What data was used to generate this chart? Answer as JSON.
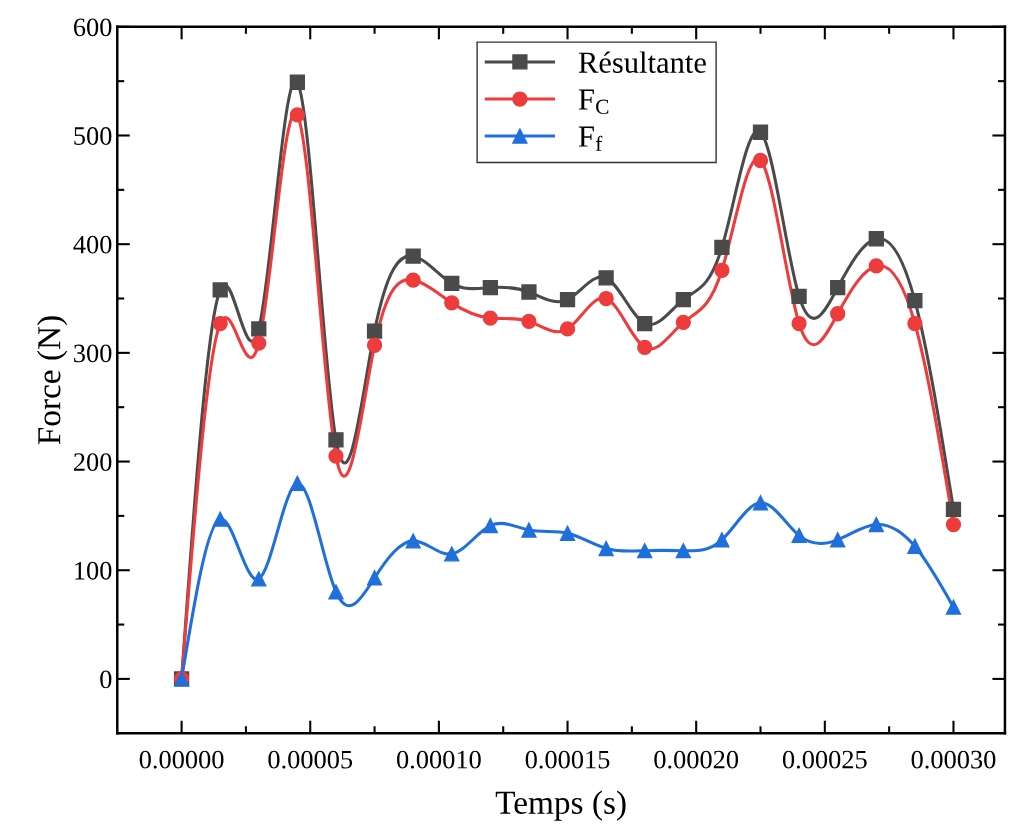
{
  "chart_data": {
    "type": "line",
    "xlabel": "Temps (s)",
    "ylabel": "Force (N)",
    "x": [
      0,
      1.5e-05,
      3e-05,
      4.5e-05,
      6e-05,
      7.5e-05,
      9e-05,
      0.000105,
      0.00012,
      0.000135,
      0.00015,
      0.000165,
      0.00018,
      0.000195,
      0.00021,
      0.000225,
      0.00024,
      0.000255,
      0.00027,
      0.000285,
      0.0003
    ],
    "series": [
      {
        "name": "Résultante",
        "color": "#4a4a4a",
        "marker": "square",
        "values": [
          0,
          358,
          322,
          549,
          220,
          320,
          389,
          364,
          360,
          356,
          349,
          369,
          327,
          349,
          397,
          503,
          352,
          360,
          405,
          348,
          156
        ]
      },
      {
        "name": "F$_{C}$",
        "color": "#ee3b3b",
        "marker": "circle",
        "values": [
          0,
          327,
          309,
          519,
          205,
          307,
          367,
          346,
          332,
          329,
          322,
          350,
          305,
          328,
          376,
          477,
          327,
          336,
          380,
          327,
          142
        ]
      },
      {
        "name": "F$_{f}$",
        "color": "#1f6fdc",
        "marker": "triangle",
        "values": [
          0,
          147,
          92,
          180,
          80,
          93,
          127,
          115,
          141,
          137,
          134,
          120,
          118,
          118,
          128,
          162,
          132,
          128,
          142,
          122,
          66
        ]
      }
    ],
    "xlim": [
      -2.5e-05,
      0.00032
    ],
    "xticks": [
      {
        "value": 0,
        "label": "0.00000"
      },
      {
        "value": 2.5e-05,
        "label": null
      },
      {
        "value": 5e-05,
        "label": "0.00005"
      },
      {
        "value": 7.5e-05,
        "label": null
      },
      {
        "value": 0.0001,
        "label": "0.00010"
      },
      {
        "value": 0.000125,
        "label": null
      },
      {
        "value": 0.00015,
        "label": "0.00015"
      },
      {
        "value": 0.000175,
        "label": null
      },
      {
        "value": 0.0002,
        "label": "0.00020"
      },
      {
        "value": 0.000225,
        "label": null
      },
      {
        "value": 0.00025,
        "label": "0.00025"
      },
      {
        "value": 0.000275,
        "label": null
      },
      {
        "value": 0.0003,
        "label": "0.00030"
      }
    ],
    "ylim": [
      -50,
      600
    ],
    "yticks": [
      0,
      {
        "value": 50,
        "label": null
      },
      100,
      {
        "value": 150,
        "label": null
      },
      200,
      {
        "value": 250,
        "label": null
      },
      300,
      {
        "value": 350,
        "label": null
      },
      400,
      {
        "value": 450,
        "label": null
      },
      500,
      {
        "value": 550,
        "label": null
      },
      600
    ],
    "grid": false,
    "legend": "top center",
    "line_style": "solid"
  }
}
